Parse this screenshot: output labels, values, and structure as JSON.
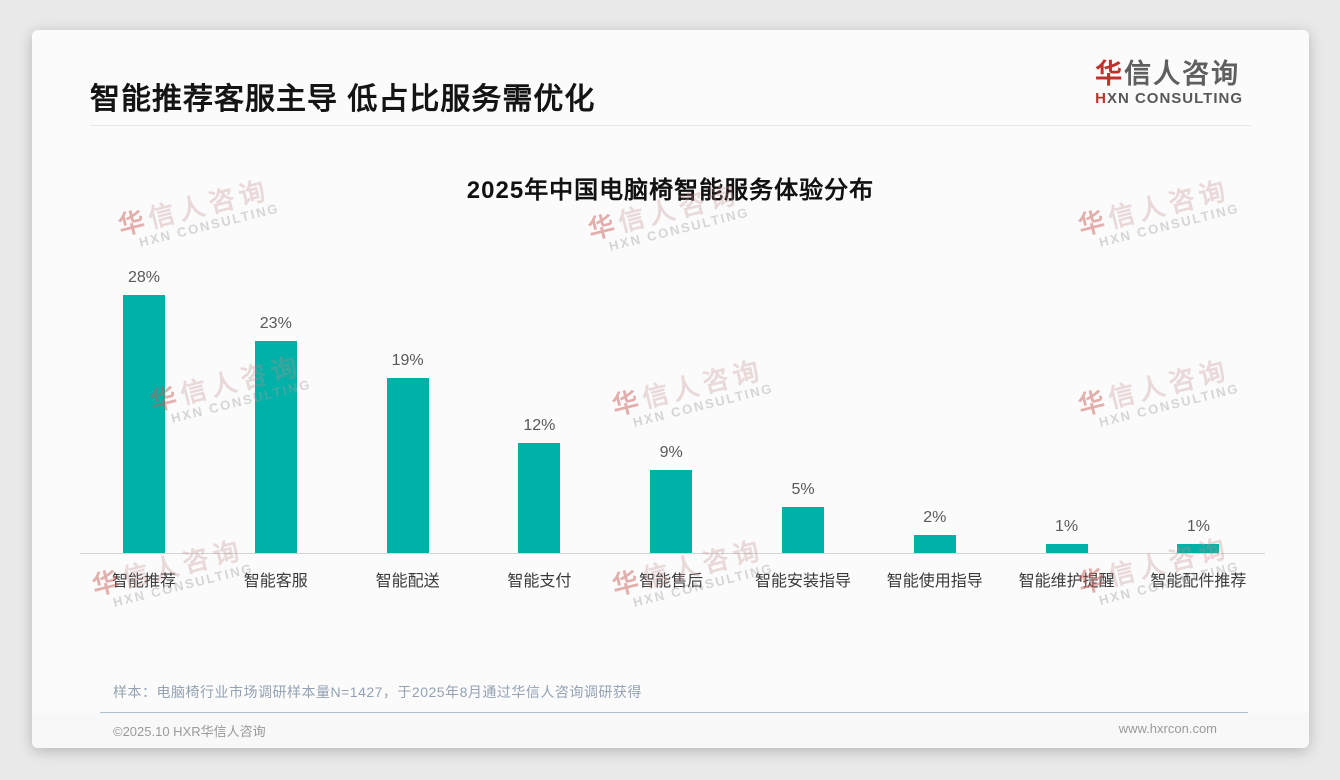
{
  "header": {
    "title": "智能推荐客服主导 低占比服务需优化"
  },
  "logo": {
    "cn_first": "华",
    "cn_rest": "信人咨询",
    "en_first": "H",
    "en_rest": "XN CONSULTING"
  },
  "chart_data": {
    "type": "bar",
    "title": "2025年中国电脑椅智能服务体验分布",
    "categories": [
      "智能推荐",
      "智能客服",
      "智能配送",
      "智能支付",
      "智能售后",
      "智能安装指导",
      "智能使用指导",
      "智能维护提醒",
      "智能配件推荐"
    ],
    "values": [
      28,
      23,
      19,
      12,
      9,
      5,
      2,
      1,
      1
    ],
    "value_suffix": "%",
    "xlabel": "",
    "ylabel": "",
    "ylim": [
      0,
      30
    ],
    "grid": false,
    "legend": "none",
    "value_labels_position": "above_bars",
    "bar_color": "#00b1a8"
  },
  "watermark": {
    "line1_first": "华",
    "line1_rest": "信人咨询",
    "line2": "HXN CONSULTING"
  },
  "note": {
    "text": "样本：电脑椅行业市场调研样本量N=1427，于2025年8月通过华信人咨询调研获得"
  },
  "footer": {
    "copyright": "©2025.10 HXR华信人咨询",
    "website": "www.hxrcon.com"
  }
}
